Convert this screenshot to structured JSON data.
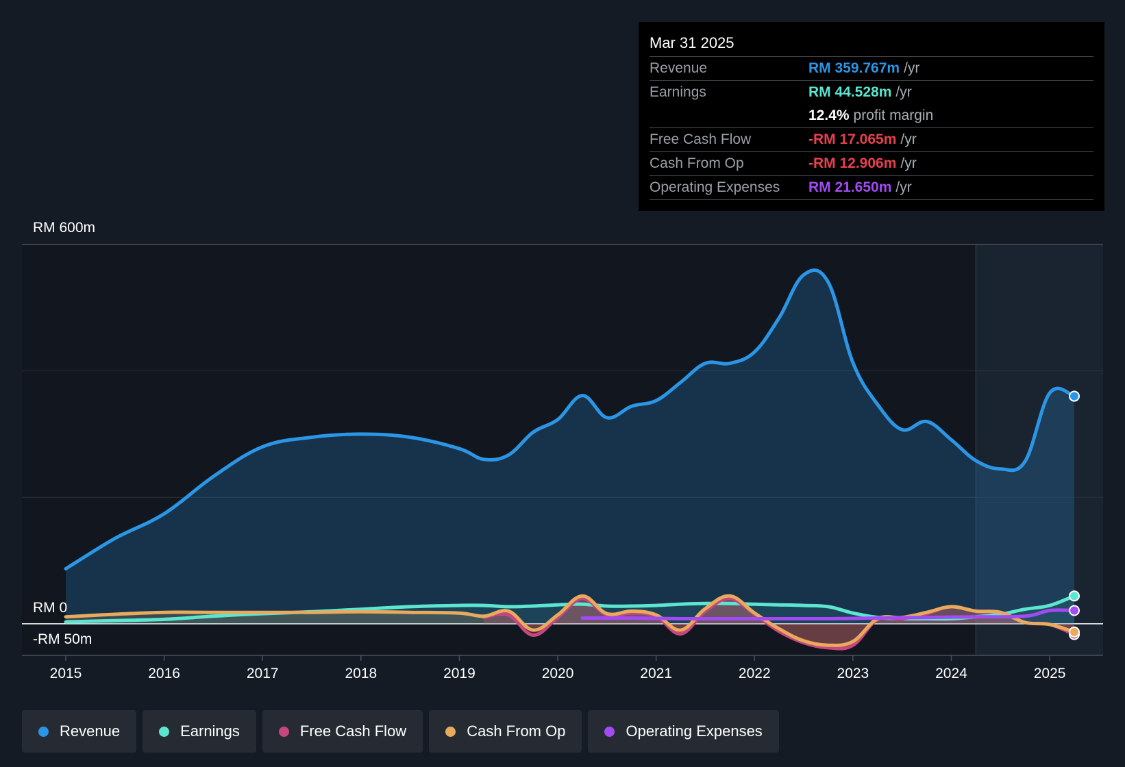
{
  "tooltip": {
    "date": "Mar 31 2025",
    "rows": [
      {
        "label": "Revenue",
        "value": "RM 359.767m",
        "unit": "/yr",
        "color": "#2b96e6"
      },
      {
        "label": "Earnings",
        "value": "RM 44.528m",
        "unit": "/yr",
        "color": "#5ce6cf"
      },
      {
        "label": "",
        "value": "12.4%",
        "unit": "profit margin",
        "color": "#ffffff"
      },
      {
        "label": "Free Cash Flow",
        "value": "-RM 17.065m",
        "unit": "/yr",
        "color": "#e8404f"
      },
      {
        "label": "Cash From Op",
        "value": "-RM 12.906m",
        "unit": "/yr",
        "color": "#e8404f"
      },
      {
        "label": "Operating Expenses",
        "value": "RM 21.650m",
        "unit": "/yr",
        "color": "#a24bf2"
      }
    ]
  },
  "legend": [
    {
      "label": "Revenue",
      "color": "#2b96e6"
    },
    {
      "label": "Earnings",
      "color": "#5ce6cf"
    },
    {
      "label": "Free Cash Flow",
      "color": "#c84680"
    },
    {
      "label": "Cash From Op",
      "color": "#e8aa5c"
    },
    {
      "label": "Operating Expenses",
      "color": "#a24bf2"
    }
  ],
  "chart_data": {
    "type": "line",
    "title": "",
    "y_top_label": "RM 600m",
    "y_zero_label": "RM 0",
    "y_bottom_label": "-RM 50m",
    "ylim": [
      -50,
      600
    ],
    "xlim": [
      2015,
      2025.25
    ],
    "x_ticks": [
      "2015",
      "2016",
      "2017",
      "2018",
      "2019",
      "2020",
      "2021",
      "2022",
      "2023",
      "2024",
      "2025"
    ],
    "forecast_start": 2024.25,
    "series": [
      {
        "name": "Revenue",
        "color": "#2b96e6",
        "x": [
          2015,
          2015.5,
          2016,
          2016.5,
          2017,
          2017.5,
          2018,
          2018.5,
          2019,
          2019.25,
          2019.5,
          2019.75,
          2020,
          2020.25,
          2020.5,
          2020.75,
          2021,
          2021.25,
          2021.5,
          2021.75,
          2022,
          2022.25,
          2022.5,
          2022.75,
          2023,
          2023.25,
          2023.5,
          2023.75,
          2024,
          2024.25,
          2024.5,
          2024.75,
          2025,
          2025.25
        ],
        "values": [
          87,
          135,
          174,
          233,
          280,
          295,
          300,
          295,
          277,
          260,
          267,
          303,
          323,
          361,
          326,
          344,
          353,
          382,
          412,
          412,
          430,
          484,
          552,
          540,
          413,
          347,
          307,
          320,
          291,
          258,
          245,
          257,
          365,
          360
        ]
      },
      {
        "name": "Earnings",
        "color": "#5ce6cf",
        "x": [
          2015,
          2015.5,
          2016,
          2016.5,
          2017,
          2017.5,
          2018,
          2018.5,
          2019,
          2019.25,
          2019.5,
          2019.75,
          2020,
          2020.25,
          2020.5,
          2020.75,
          2021,
          2021.25,
          2021.5,
          2021.75,
          2022,
          2022.25,
          2022.5,
          2022.75,
          2023,
          2023.25,
          2023.5,
          2023.75,
          2024,
          2024.25,
          2024.5,
          2024.75,
          2025,
          2025.25
        ],
        "values": [
          3,
          5,
          7,
          12,
          16,
          19,
          23,
          27,
          29,
          29,
          27,
          28,
          30,
          31,
          28,
          28,
          29,
          31,
          32,
          32,
          31,
          30,
          29,
          27,
          17,
          10,
          8,
          8,
          8,
          11,
          15,
          23,
          29,
          44
        ]
      },
      {
        "name": "Free Cash Flow",
        "color": "#c84680",
        "x": [
          2019.25,
          2019.5,
          2019.75,
          2020,
          2020.25,
          2020.5,
          2020.75,
          2021,
          2021.25,
          2021.5,
          2021.75,
          2022,
          2022.25,
          2022.5,
          2022.75,
          2023,
          2023.25,
          2023.5,
          2023.75,
          2024,
          2024.25,
          2024.5,
          2024.75,
          2025,
          2025.25
        ],
        "values": [
          10,
          14,
          -18,
          10,
          40,
          14,
          17,
          12,
          -16,
          20,
          40,
          15,
          -12,
          -30,
          -38,
          -34,
          7,
          8,
          16,
          27,
          20,
          18,
          2,
          -1,
          -17
        ]
      },
      {
        "name": "Cash From Op",
        "color": "#e8aa5c",
        "x": [
          2015,
          2015.5,
          2016,
          2016.5,
          2017,
          2017.5,
          2018,
          2018.5,
          2019,
          2019.25,
          2019.5,
          2019.75,
          2020,
          2020.25,
          2020.5,
          2020.75,
          2021,
          2021.25,
          2021.5,
          2021.75,
          2022,
          2022.25,
          2022.5,
          2022.75,
          2023,
          2023.25,
          2023.5,
          2023.75,
          2024,
          2024.25,
          2024.5,
          2024.75,
          2025,
          2025.25
        ],
        "values": [
          11,
          15,
          18,
          18,
          18,
          18,
          19,
          18,
          17,
          12,
          20,
          -10,
          14,
          44,
          16,
          20,
          14,
          -10,
          24,
          44,
          17,
          -8,
          -27,
          -34,
          -28,
          8,
          10,
          18,
          27,
          20,
          18,
          2,
          -1,
          -13
        ]
      },
      {
        "name": "Operating Expenses",
        "color": "#a24bf2",
        "x": [
          2020.25,
          2020.75,
          2021.25,
          2021.75,
          2022.25,
          2022.75,
          2023.25,
          2023.75,
          2024.25,
          2024.75,
          2025,
          2025.25
        ],
        "values": [
          9,
          9,
          8,
          8,
          8,
          8,
          9,
          10,
          11,
          12,
          21,
          21
        ]
      }
    ]
  }
}
